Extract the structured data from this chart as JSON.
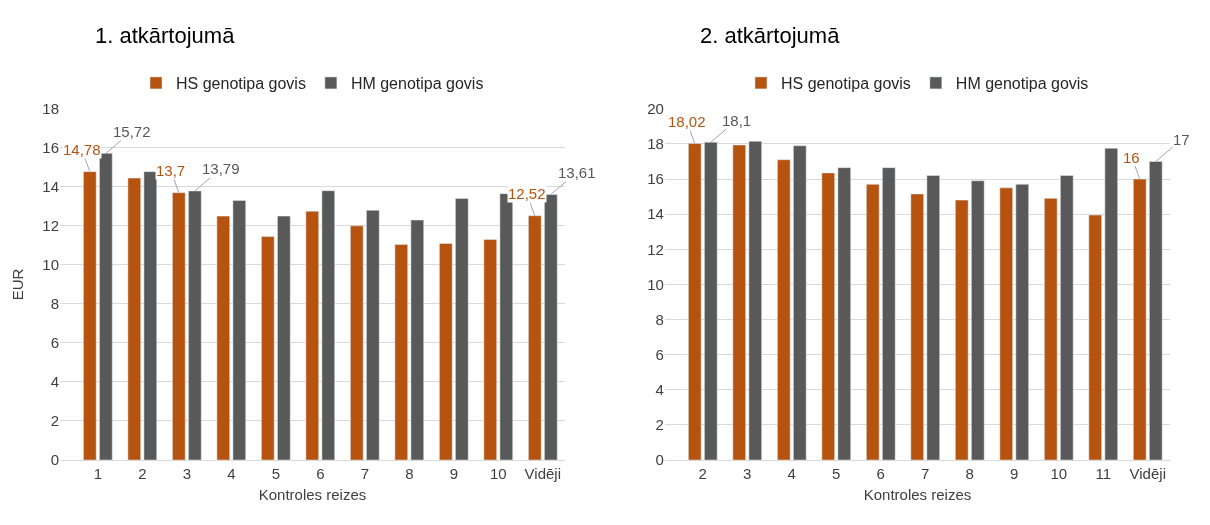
{
  "chart_data": [
    {
      "type": "bar",
      "title": "1. atkārtojumā",
      "xlabel": "Kontroles reizes",
      "ylabel": "EUR",
      "categories": [
        "1",
        "2",
        "3",
        "4",
        "5",
        "6",
        "7",
        "8",
        "9",
        "10",
        "Vidēji"
      ],
      "series": [
        {
          "name": "HS genotipa govis",
          "color": "#b5530f",
          "values": [
            14.78,
            14.45,
            13.7,
            12.5,
            11.45,
            12.75,
            12.0,
            11.05,
            11.1,
            11.3,
            12.52
          ],
          "value_labels": [
            "14,78",
            null,
            "13,7",
            null,
            null,
            null,
            null,
            null,
            null,
            null,
            "12,52"
          ]
        },
        {
          "name": "HM genotipa govis",
          "color": "#595959",
          "values": [
            15.72,
            14.78,
            13.79,
            13.3,
            12.5,
            13.8,
            12.8,
            12.3,
            13.4,
            13.65,
            13.61
          ],
          "value_labels": [
            "15,72",
            null,
            "13,79",
            null,
            null,
            null,
            null,
            null,
            null,
            null,
            "13,61"
          ]
        }
      ],
      "ylim": [
        0,
        18
      ],
      "yticks": [
        0,
        2,
        4,
        6,
        8,
        10,
        12,
        14,
        16,
        18
      ],
      "grid": "y",
      "legend": "top"
    },
    {
      "type": "bar",
      "title": "2. atkārtojumā",
      "xlabel": "Kontroles reizes",
      "categories": [
        "2",
        "3",
        "4",
        "5",
        "6",
        "7",
        "8",
        "9",
        "10",
        "11",
        "Vidēji"
      ],
      "series": [
        {
          "name": "HS genotipa govis",
          "color": "#b5530f",
          "values": [
            18.02,
            17.94,
            17.1,
            16.35,
            15.7,
            15.15,
            14.8,
            15.5,
            14.9,
            13.95,
            16
          ],
          "value_labels": [
            "18,02",
            null,
            null,
            null,
            null,
            null,
            null,
            null,
            null,
            null,
            "16"
          ]
        },
        {
          "name": "HM genotipa govis",
          "color": "#595959",
          "values": [
            18.1,
            18.15,
            17.9,
            16.65,
            16.65,
            16.2,
            15.9,
            15.7,
            16.2,
            17.75,
            17
          ],
          "value_labels": [
            "18,1",
            null,
            null,
            null,
            null,
            null,
            null,
            null,
            null,
            null,
            "17"
          ]
        }
      ],
      "ylim": [
        0,
        20
      ],
      "yticks": [
        0,
        2,
        4,
        6,
        8,
        10,
        12,
        14,
        16,
        18,
        20
      ],
      "grid": "y",
      "legend": "top"
    }
  ]
}
